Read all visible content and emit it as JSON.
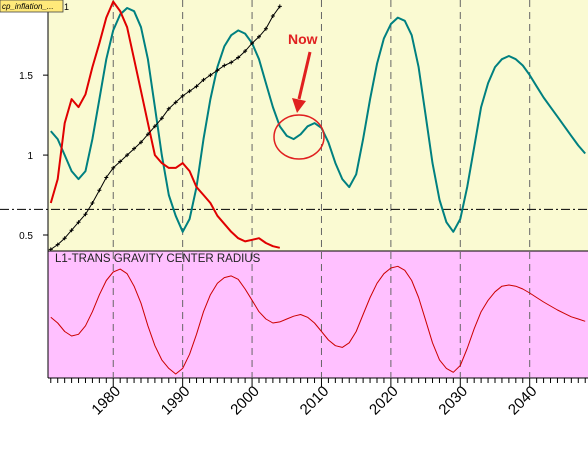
{
  "window": {
    "tab_title": "cp_inflation_...",
    "tab_index": "1"
  },
  "now_annotation": {
    "label": "Now",
    "color": "#e02020"
  },
  "chart_data": [
    {
      "type": "line",
      "panel": "upper",
      "xlim": [
        1970.6,
        2048.4
      ],
      "ylim": [
        0.4,
        1.97
      ],
      "y_ticks": [
        0.5,
        1,
        1.5
      ],
      "y_tick_labels": [
        "0.5",
        "1",
        "1.5"
      ],
      "grid": "dashed vertical lines every 10 years",
      "background": "#fafad2",
      "reference_line": {
        "y": 0.66,
        "style": "dash-dot",
        "color": "#000000"
      },
      "series": [
        {
          "color": "#008080",
          "x": [
            1971,
            1972,
            1973,
            1974,
            1975,
            1976,
            1977,
            1978,
            1979,
            1980,
            1981,
            1982,
            1983,
            1984,
            1985,
            1986,
            1987,
            1988,
            1989,
            1990,
            1991,
            1992,
            1993,
            1994,
            1995,
            1996,
            1997,
            1998,
            1999,
            2000,
            2001,
            2002,
            2003,
            2004,
            2005,
            2006,
            2007,
            2008,
            2009,
            2010,
            2011,
            2012,
            2013,
            2014,
            2015,
            2016,
            2017,
            2018,
            2019,
            2020,
            2021,
            2022,
            2023,
            2024,
            2025,
            2026,
            2027,
            2028,
            2029,
            2030,
            2031,
            2032,
            2033,
            2034,
            2035,
            2036,
            2037,
            2038,
            2039,
            2040,
            2041,
            2042,
            2043,
            2044,
            2045,
            2046,
            2047,
            2048
          ],
          "values": [
            1.15,
            1.1,
            1.0,
            0.9,
            0.85,
            0.9,
            1.1,
            1.35,
            1.6,
            1.78,
            1.88,
            1.92,
            1.9,
            1.8,
            1.6,
            1.3,
            1.0,
            0.75,
            0.62,
            0.52,
            0.6,
            0.8,
            1.1,
            1.35,
            1.55,
            1.68,
            1.75,
            1.78,
            1.76,
            1.7,
            1.6,
            1.45,
            1.3,
            1.18,
            1.12,
            1.1,
            1.13,
            1.18,
            1.2,
            1.17,
            1.08,
            0.95,
            0.85,
            0.8,
            0.88,
            1.1,
            1.35,
            1.57,
            1.73,
            1.82,
            1.86,
            1.84,
            1.75,
            1.55,
            1.25,
            0.95,
            0.72,
            0.58,
            0.52,
            0.6,
            0.8,
            1.05,
            1.3,
            1.45,
            1.55,
            1.6,
            1.62,
            1.6,
            1.56,
            1.5,
            1.43,
            1.36,
            1.3,
            1.24,
            1.18,
            1.12,
            1.06,
            1.01
          ]
        },
        {
          "color": "#e00000",
          "x": [
            1971,
            1972,
            1973,
            1974,
            1975,
            1976,
            1977,
            1978,
            1979,
            1980,
            1981,
            1982,
            1983,
            1984,
            1985,
            1986,
            1987,
            1988,
            1989,
            1990,
            1991,
            1992,
            1993,
            1994,
            1995,
            1996,
            1997,
            1998,
            1999,
            2000,
            2001,
            2002,
            2003,
            2004
          ],
          "values": [
            0.7,
            0.85,
            1.2,
            1.35,
            1.3,
            1.38,
            1.55,
            1.7,
            1.86,
            1.96,
            1.9,
            1.8,
            1.6,
            1.4,
            1.2,
            1.0,
            0.95,
            0.92,
            0.92,
            0.95,
            0.9,
            0.8,
            0.75,
            0.7,
            0.62,
            0.57,
            0.52,
            0.48,
            0.46,
            0.47,
            0.48,
            0.45,
            0.43,
            0.42
          ]
        },
        {
          "color": "#000000",
          "marker": "+",
          "x": [
            1971,
            1972,
            1973,
            1974,
            1975,
            1976,
            1977,
            1978,
            1979,
            1980,
            1981,
            1982,
            1983,
            1984,
            1985,
            1986,
            1987,
            1988,
            1989,
            1990,
            1991,
            1992,
            1993,
            1994,
            1995,
            1996,
            1997,
            1998,
            1999,
            2000,
            2001,
            2002,
            2003,
            2004
          ],
          "values": [
            0.41,
            0.44,
            0.48,
            0.53,
            0.58,
            0.63,
            0.7,
            0.78,
            0.86,
            0.92,
            0.96,
            1.0,
            1.04,
            1.08,
            1.13,
            1.18,
            1.23,
            1.29,
            1.33,
            1.37,
            1.4,
            1.43,
            1.47,
            1.5,
            1.53,
            1.56,
            1.58,
            1.61,
            1.65,
            1.7,
            1.74,
            1.79,
            1.87,
            1.93
          ]
        }
      ]
    },
    {
      "type": "line",
      "panel": "lower",
      "title": "L1-TRANS GRAVITY CENTER RADIUS",
      "xlim": [
        1970.6,
        2048.4
      ],
      "ylim": [
        -1.12,
        1.12
      ],
      "background": "#ffc0ff",
      "grid": "dashed vertical lines every 10 years",
      "x_ticks": [
        1980,
        1990,
        2000,
        2010,
        2020,
        2030,
        2040
      ],
      "x_tick_labels": [
        "1980",
        "1990",
        "2000",
        "2010",
        "2020",
        "2030",
        "2040"
      ],
      "series": [
        {
          "color": "#cc0000",
          "x": [
            1971,
            1972,
            1973,
            1974,
            1975,
            1976,
            1977,
            1978,
            1979,
            1980,
            1981,
            1982,
            1983,
            1984,
            1985,
            1986,
            1987,
            1988,
            1989,
            1990,
            1991,
            1992,
            1993,
            1994,
            1995,
            1996,
            1997,
            1998,
            1999,
            2000,
            2001,
            2002,
            2003,
            2004,
            2005,
            2006,
            2007,
            2008,
            2009,
            2010,
            2011,
            2012,
            2013,
            2014,
            2015,
            2016,
            2017,
            2018,
            2019,
            2020,
            2021,
            2022,
            2023,
            2024,
            2025,
            2026,
            2027,
            2028,
            2029,
            2030,
            2031,
            2032,
            2033,
            2034,
            2035,
            2036,
            2037,
            2038,
            2039,
            2040,
            2041,
            2042,
            2043,
            2044,
            2045,
            2046,
            2047,
            2048
          ],
          "values": [
            -0.05,
            -0.15,
            -0.3,
            -0.38,
            -0.35,
            -0.2,
            0.05,
            0.35,
            0.6,
            0.75,
            0.8,
            0.72,
            0.5,
            0.2,
            -0.2,
            -0.55,
            -0.8,
            -0.95,
            -1.05,
            -0.95,
            -0.7,
            -0.35,
            0.05,
            0.35,
            0.55,
            0.65,
            0.68,
            0.62,
            0.45,
            0.25,
            0.05,
            -0.08,
            -0.15,
            -0.13,
            -0.08,
            -0.03,
            0.0,
            -0.05,
            -0.15,
            -0.3,
            -0.45,
            -0.55,
            -0.58,
            -0.5,
            -0.3,
            0.0,
            0.3,
            0.55,
            0.72,
            0.82,
            0.85,
            0.78,
            0.6,
            0.3,
            -0.1,
            -0.5,
            -0.8,
            -0.95,
            -1.02,
            -0.9,
            -0.6,
            -0.25,
            0.05,
            0.25,
            0.4,
            0.5,
            0.52,
            0.5,
            0.45,
            0.38,
            0.3,
            0.22,
            0.15,
            0.08,
            0.02,
            -0.04,
            -0.08,
            -0.12
          ]
        }
      ]
    }
  ]
}
